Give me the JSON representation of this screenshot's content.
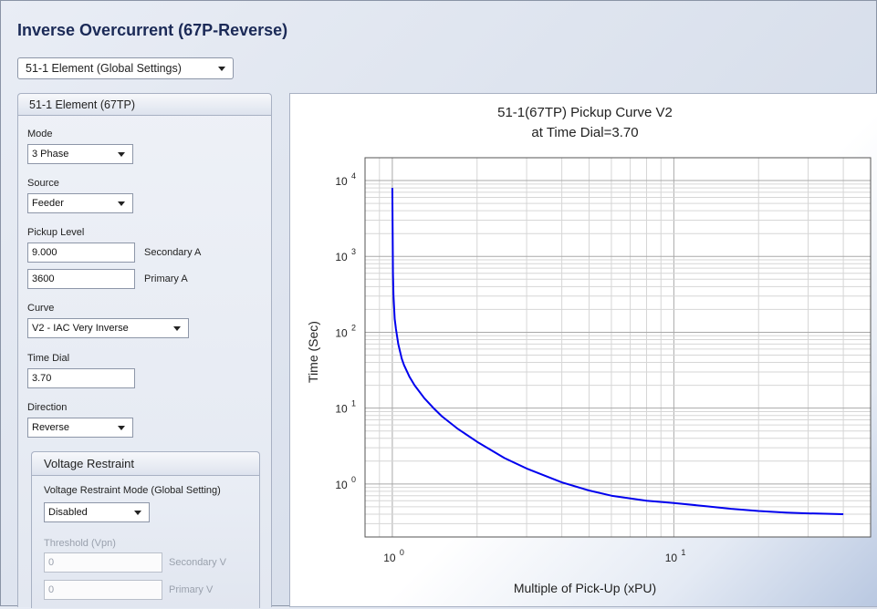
{
  "page_title": "Inverse Overcurrent (67P-Reverse)",
  "global_dropdown": {
    "selected": "51-1 Element (Global Settings)"
  },
  "panel": {
    "title": "51-1 Element (67TP)",
    "mode": {
      "label": "Mode",
      "value": "3 Phase"
    },
    "source": {
      "label": "Source",
      "value": "Feeder"
    },
    "pickup": {
      "label": "Pickup Level",
      "secondary_value": "9.000",
      "secondary_unit": "Secondary A",
      "primary_value": "3600",
      "primary_unit": "Primary A"
    },
    "curve": {
      "label": "Curve",
      "value": "V2 - IAC Very Inverse"
    },
    "time_dial": {
      "label": "Time Dial",
      "value": "3.70"
    },
    "direction": {
      "label": "Direction",
      "value": "Reverse"
    }
  },
  "voltage_restraint": {
    "title": "Voltage Restraint",
    "mode_label": "Voltage Restraint Mode (Global Setting)",
    "mode_value": "Disabled",
    "threshold_label": "Threshold (Vpn)",
    "secondary_value": "0",
    "secondary_unit": "Secondary V",
    "primary_value": "0",
    "primary_unit": "Primary V"
  },
  "chart_data": {
    "type": "line",
    "title": "51-1(67TP) Pickup Curve V2",
    "subtitle": "at Time Dial=3.70",
    "xlabel": "Multiple of Pick-Up (xPU)",
    "ylabel": "Time (Sec)",
    "x_scale": "log",
    "y_scale": "log",
    "xlim": [
      0.8,
      50
    ],
    "ylim": [
      0.2,
      20000
    ],
    "grid": true,
    "x_ticks": [
      {
        "v": 1,
        "exp": "0"
      },
      {
        "v": 10,
        "exp": "1"
      }
    ],
    "y_ticks": [
      {
        "v": 1,
        "exp": "0"
      },
      {
        "v": 10,
        "exp": "1"
      },
      {
        "v": 100,
        "exp": "2"
      },
      {
        "v": 1000,
        "exp": "3"
      },
      {
        "v": 10000,
        "exp": "4"
      }
    ],
    "tick_base": "10",
    "series": [
      {
        "color": "#0000ee",
        "x": [
          1.0,
          1.005,
          1.01,
          1.02,
          1.03,
          1.05,
          1.08,
          1.1,
          1.15,
          1.2,
          1.3,
          1.4,
          1.5,
          1.7,
          2.0,
          2.5,
          3.0,
          4.0,
          5.0,
          6.0,
          8.0,
          10.0,
          13.0,
          16.0,
          20.0,
          25.0,
          30.0,
          40.0
        ],
        "y": [
          8000,
          600,
          300,
          150,
          110,
          70,
          45,
          37,
          26,
          20,
          13.5,
          10,
          7.8,
          5.4,
          3.6,
          2.2,
          1.6,
          1.05,
          0.82,
          0.7,
          0.6,
          0.56,
          0.51,
          0.47,
          0.44,
          0.42,
          0.41,
          0.4
        ]
      }
    ]
  }
}
